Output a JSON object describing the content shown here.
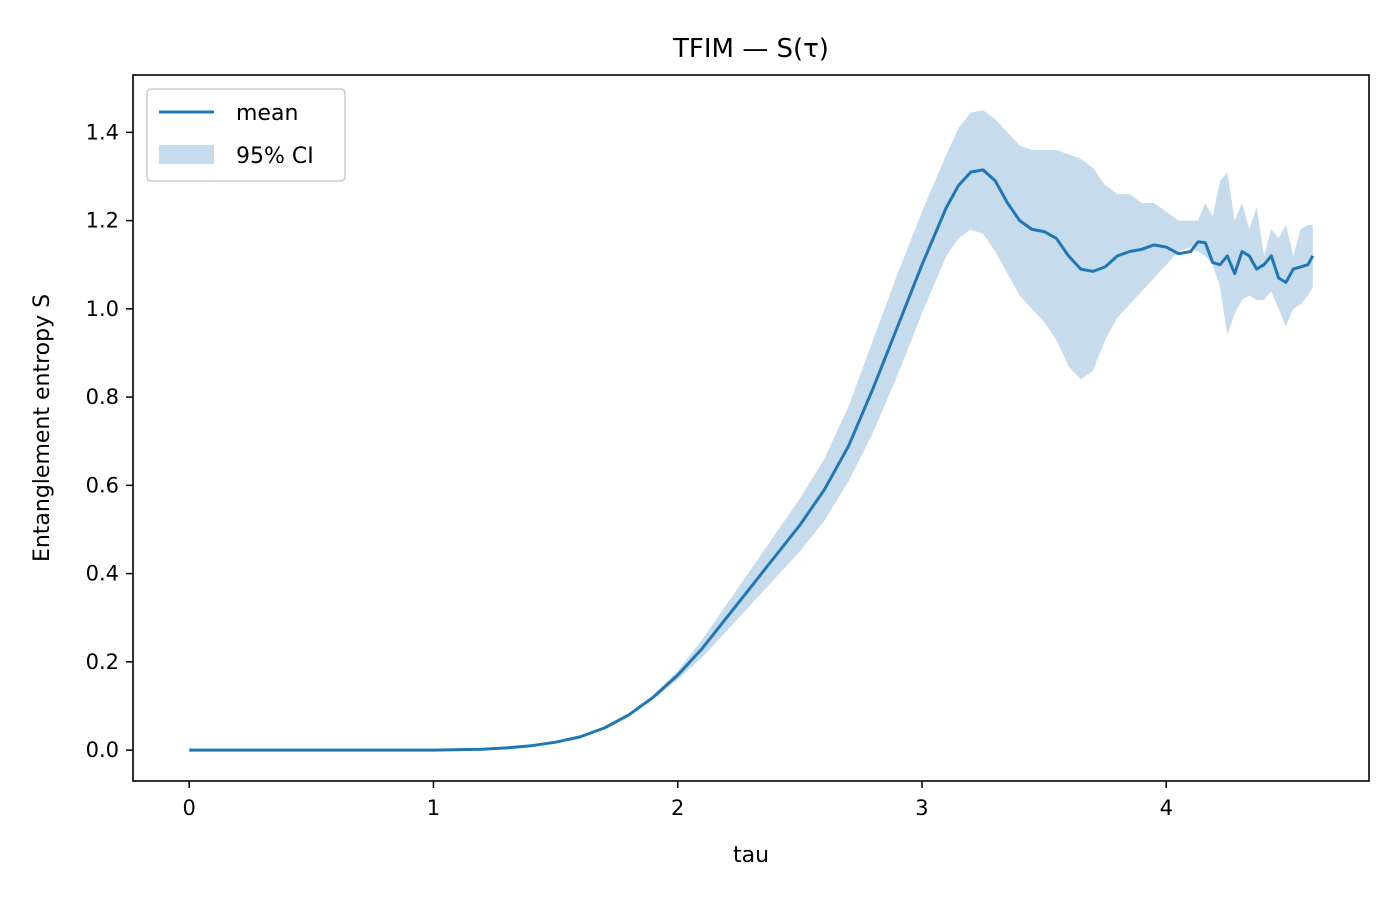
{
  "chart_data": {
    "type": "line",
    "title": "TFIM — S(τ)",
    "xlabel": "tau",
    "ylabel": "Entanglement entropy S",
    "xlim": [
      -0.23,
      4.83
    ],
    "ylim": [
      -0.07,
      1.53
    ],
    "x_ticks": [
      0,
      1,
      2,
      3,
      4
    ],
    "x_tick_labels": [
      "0",
      "1",
      "2",
      "3",
      "4"
    ],
    "y_ticks": [
      0.0,
      0.2,
      0.4,
      0.6,
      0.8,
      1.0,
      1.2,
      1.4
    ],
    "y_tick_labels": [
      "0.0",
      "0.2",
      "0.4",
      "0.6",
      "0.8",
      "1.0",
      "1.2",
      "1.4"
    ],
    "grid": false,
    "legend_position": "top-left",
    "colors": {
      "line": "#1f77b4",
      "band": "#c6dbec",
      "axes": "#000000"
    },
    "series": [
      {
        "name": "mean",
        "kind": "line",
        "x": [
          0,
          0.5,
          1.0,
          1.2,
          1.3,
          1.4,
          1.5,
          1.6,
          1.7,
          1.8,
          1.9,
          2.0,
          2.1,
          2.2,
          2.3,
          2.4,
          2.5,
          2.6,
          2.7,
          2.8,
          2.9,
          3.0,
          3.1,
          3.15,
          3.2,
          3.25,
          3.3,
          3.35,
          3.4,
          3.45,
          3.5,
          3.55,
          3.6,
          3.65,
          3.7,
          3.75,
          3.8,
          3.85,
          3.9,
          3.95,
          4.0,
          4.05,
          4.1,
          4.13,
          4.16,
          4.19,
          4.22,
          4.25,
          4.28,
          4.31,
          4.34,
          4.37,
          4.4,
          4.43,
          4.46,
          4.49,
          4.52,
          4.55,
          4.58,
          4.6
        ],
        "y": [
          0.0,
          0.0,
          0.0,
          0.002,
          0.005,
          0.01,
          0.018,
          0.03,
          0.05,
          0.08,
          0.12,
          0.17,
          0.23,
          0.3,
          0.37,
          0.44,
          0.51,
          0.59,
          0.69,
          0.82,
          0.96,
          1.1,
          1.23,
          1.28,
          1.31,
          1.315,
          1.29,
          1.24,
          1.2,
          1.18,
          1.175,
          1.16,
          1.12,
          1.09,
          1.085,
          1.095,
          1.12,
          1.13,
          1.135,
          1.145,
          1.14,
          1.125,
          1.13,
          1.152,
          1.15,
          1.105,
          1.1,
          1.12,
          1.08,
          1.13,
          1.12,
          1.09,
          1.1,
          1.12,
          1.07,
          1.06,
          1.09,
          1.095,
          1.1,
          1.12
        ]
      },
      {
        "name": "95% CI",
        "kind": "band",
        "x": [
          0,
          0.5,
          1.0,
          1.2,
          1.3,
          1.4,
          1.5,
          1.6,
          1.7,
          1.8,
          1.9,
          2.0,
          2.1,
          2.2,
          2.3,
          2.4,
          2.5,
          2.6,
          2.7,
          2.8,
          2.9,
          3.0,
          3.1,
          3.15,
          3.2,
          3.25,
          3.3,
          3.35,
          3.4,
          3.45,
          3.5,
          3.55,
          3.6,
          3.65,
          3.7,
          3.75,
          3.8,
          3.85,
          3.9,
          3.95,
          4.0,
          4.05,
          4.1,
          4.13,
          4.16,
          4.19,
          4.22,
          4.25,
          4.28,
          4.31,
          4.34,
          4.37,
          4.4,
          4.43,
          4.46,
          4.49,
          4.52,
          4.55,
          4.58,
          4.6
        ],
        "lower": [
          0.0,
          0.0,
          0.0,
          0.002,
          0.005,
          0.01,
          0.018,
          0.03,
          0.05,
          0.078,
          0.115,
          0.16,
          0.21,
          0.27,
          0.33,
          0.39,
          0.45,
          0.52,
          0.61,
          0.72,
          0.85,
          0.99,
          1.12,
          1.16,
          1.18,
          1.17,
          1.13,
          1.08,
          1.03,
          1.0,
          0.97,
          0.93,
          0.87,
          0.84,
          0.86,
          0.93,
          0.98,
          1.01,
          1.04,
          1.07,
          1.1,
          1.13,
          1.14,
          1.13,
          1.12,
          1.1,
          1.05,
          0.94,
          0.99,
          1.02,
          1.03,
          1.02,
          1.02,
          1.04,
          1.0,
          0.96,
          1.0,
          1.01,
          1.03,
          1.05
        ],
        "upper": [
          0.0,
          0.0,
          0.0,
          0.002,
          0.005,
          0.01,
          0.018,
          0.03,
          0.05,
          0.082,
          0.125,
          0.18,
          0.25,
          0.33,
          0.41,
          0.49,
          0.57,
          0.66,
          0.78,
          0.93,
          1.08,
          1.22,
          1.35,
          1.41,
          1.445,
          1.45,
          1.43,
          1.4,
          1.37,
          1.36,
          1.36,
          1.36,
          1.35,
          1.34,
          1.32,
          1.28,
          1.26,
          1.26,
          1.24,
          1.24,
          1.22,
          1.2,
          1.2,
          1.2,
          1.24,
          1.21,
          1.29,
          1.31,
          1.2,
          1.24,
          1.18,
          1.23,
          1.12,
          1.18,
          1.16,
          1.19,
          1.12,
          1.18,
          1.19,
          1.19
        ]
      }
    ]
  }
}
